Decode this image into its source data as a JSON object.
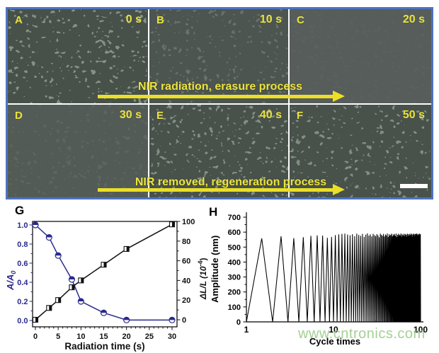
{
  "figure": {
    "panels": [
      {
        "letter": "A",
        "time": "0 s"
      },
      {
        "letter": "B",
        "time": "10 s"
      },
      {
        "letter": "C",
        "time": "20 s"
      },
      {
        "letter": "D",
        "time": "30 s"
      },
      {
        "letter": "E",
        "time": "40 s"
      },
      {
        "letter": "F",
        "time": "50 s"
      }
    ],
    "arrow_top_label": "NIR radiation, erasure process",
    "arrow_bottom_label": "NIR removed, regeneration process",
    "panel_g_label": "G",
    "panel_h_label": "H"
  },
  "watermark": "www.cntronics.com",
  "colors": {
    "frame_blue": "#4d73c0",
    "annotation_yellow": "#e9e23b",
    "curve_blue": "#2a2a8e",
    "curve_black": "#111111",
    "watermark_green": "#9ccd8a"
  },
  "chart_data": [
    {
      "id": "G",
      "type": "line",
      "grid": false,
      "xlabel": "Radiation time (s)",
      "xlim": [
        0,
        30
      ],
      "xticks": [
        0,
        5,
        10,
        15,
        20,
        25,
        30
      ],
      "left_axis": {
        "label": "A/A0",
        "label_main": "A/A",
        "label_sub": "0",
        "lim": [
          0,
          1
        ],
        "ticks": [
          "0.0",
          "0.2",
          "0.4",
          "0.6",
          "0.8",
          "1.0"
        ],
        "color": "#2a2a8e"
      },
      "right_axis": {
        "label": "ΔL/L (10-4)",
        "label_main": "ΔL/L (10",
        "label_sup": "-4",
        "label_end": ")",
        "lim": [
          0,
          100
        ],
        "ticks": [
          0,
          20,
          40,
          60,
          80,
          100
        ],
        "color": "#111111"
      },
      "series": [
        {
          "name": "A/A0",
          "axis": "left",
          "marker": "half-circle",
          "color": "#2a2a8e",
          "x": [
            0,
            3,
            5,
            8,
            10,
            15,
            20,
            30
          ],
          "y": [
            1.0,
            0.87,
            0.68,
            0.43,
            0.2,
            0.08,
            0.005,
            0.005
          ]
        },
        {
          "name": "ΔL/L",
          "axis": "right",
          "marker": "half-square",
          "color": "#111111",
          "x": [
            0,
            3,
            5,
            8,
            10,
            15,
            20,
            30
          ],
          "y": [
            0,
            12,
            20,
            33,
            40,
            56,
            72,
            97
          ]
        }
      ]
    },
    {
      "id": "H",
      "type": "line",
      "xscale": "log",
      "xlabel": "Cycle times",
      "xlim": [
        1,
        100
      ],
      "xticks": [
        1,
        10,
        100
      ],
      "ylabel": "Amplitude (nm)",
      "ylim": [
        0,
        700
      ],
      "yticks": [
        0,
        100,
        200,
        300,
        400,
        500,
        600,
        700
      ],
      "waveform": {
        "shape": "triangle",
        "valley_nm": 0,
        "peaks_nm": [
          558,
          572,
          560,
          566,
          575,
          578,
          577,
          562,
          568,
          580,
          585,
          588,
          590,
          584,
          579,
          586,
          573,
          590,
          581,
          575,
          588,
          569,
          583,
          592,
          577,
          585,
          571,
          589,
          580,
          574,
          587,
          578,
          565,
          590,
          582,
          576,
          588,
          571,
          584,
          579,
          591,
          568,
          586,
          577,
          583,
          590,
          572,
          585,
          579,
          588,
          574,
          590,
          567,
          582,
          589,
          576,
          584,
          578,
          591,
          570,
          586,
          581,
          575,
          589,
          572,
          587,
          580,
          584,
          569,
          590,
          577,
          585,
          573,
          588,
          582,
          579,
          591,
          574,
          586,
          568,
          583,
          590,
          578,
          585,
          571,
          589,
          576,
          587,
          580,
          592,
          575,
          584,
          570,
          588,
          581,
          577,
          590,
          573,
          586
        ]
      }
    }
  ]
}
